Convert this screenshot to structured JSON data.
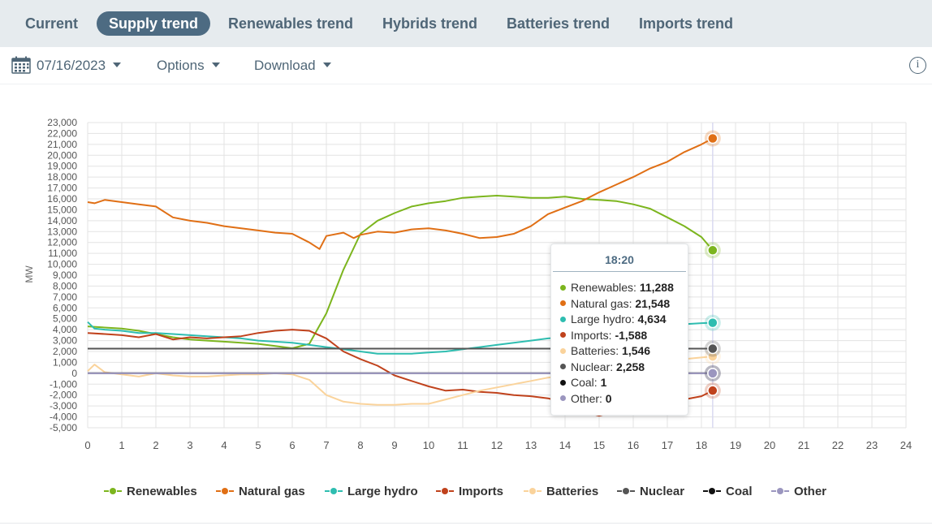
{
  "tabs": [
    {
      "label": "Current",
      "active": false
    },
    {
      "label": "Supply trend",
      "active": true
    },
    {
      "label": "Renewables trend",
      "active": false
    },
    {
      "label": "Hybrids trend",
      "active": false
    },
    {
      "label": "Batteries trend",
      "active": false
    },
    {
      "label": "Imports trend",
      "active": false
    }
  ],
  "toolbar": {
    "date": "07/16/2023",
    "options_label": "Options",
    "download_label": "Download",
    "info_label": "i"
  },
  "tooltip": {
    "time": "18:20",
    "rows": [
      {
        "label": "Renewables:",
        "value": "11,288",
        "color": "#7cb51e"
      },
      {
        "label": "Natural gas:",
        "value": "21,548",
        "color": "#e06f15"
      },
      {
        "label": "Large hydro:",
        "value": "4,634",
        "color": "#2ebdb0"
      },
      {
        "label": "Imports:",
        "value": "-1,588",
        "color": "#c0421c"
      },
      {
        "label": "Batteries:",
        "value": "1,546",
        "color": "#fad39b"
      },
      {
        "label": "Nuclear:",
        "value": "2,258",
        "color": "#555555"
      },
      {
        "label": "Coal:",
        "value": "1",
        "color": "#111111"
      },
      {
        "label": "Other:",
        "value": "0",
        "color": "#9b96bf"
      }
    ]
  },
  "chart_data": {
    "type": "line",
    "title": "",
    "xlabel": "",
    "ylabel": "MW",
    "xlim": [
      0,
      24
    ],
    "ylim": [
      -5000,
      23000
    ],
    "x_ticks": [
      "0",
      "1",
      "2",
      "3",
      "4",
      "5",
      "6",
      "7",
      "8",
      "9",
      "10",
      "11",
      "12",
      "13",
      "14",
      "15",
      "16",
      "17",
      "18",
      "19",
      "20",
      "21",
      "22",
      "23",
      "24"
    ],
    "y_ticks": [
      "23,000",
      "22,000",
      "21,000",
      "20,000",
      "19,000",
      "18,000",
      "17,000",
      "16,000",
      "15,000",
      "14,000",
      "13,000",
      "12,000",
      "11,000",
      "10,000",
      "9,000",
      "8,000",
      "7,000",
      "6,000",
      "5,000",
      "4,000",
      "3,000",
      "2,000",
      "1,000",
      "0",
      "-1,000",
      "-2,000",
      "-3,000",
      "-4,000",
      "-5,000"
    ],
    "grid": true,
    "legend_position": "bottom",
    "crosshair_x": 18.33,
    "series": [
      {
        "name": "Renewables",
        "color": "#7cb51e",
        "x": [
          0,
          0.5,
          1,
          1.5,
          2,
          2.5,
          3,
          3.5,
          4,
          4.5,
          5,
          5.5,
          6,
          6.5,
          7,
          7.5,
          8,
          8.5,
          9,
          9.5,
          10,
          10.5,
          11,
          11.5,
          12,
          12.5,
          13,
          13.5,
          14,
          14.5,
          15,
          15.5,
          16,
          16.5,
          17,
          17.5,
          18,
          18.33
        ],
        "y": [
          4300,
          4200,
          4100,
          3900,
          3600,
          3300,
          3100,
          3000,
          2900,
          2800,
          2700,
          2500,
          2300,
          2700,
          5500,
          9500,
          12800,
          14000,
          14700,
          15300,
          15600,
          15800,
          16100,
          16200,
          16300,
          16200,
          16100,
          16100,
          16200,
          16000,
          15900,
          15800,
          15500,
          15100,
          14300,
          13500,
          12500,
          11288
        ]
      },
      {
        "name": "Natural gas",
        "color": "#e06f15",
        "x": [
          0,
          0.2,
          0.5,
          1,
          1.5,
          2,
          2.5,
          3,
          3.5,
          4,
          4.5,
          5,
          5.5,
          6,
          6.5,
          6.8,
          7,
          7.5,
          7.8,
          8,
          8.5,
          9,
          9.5,
          10,
          10.5,
          11,
          11.5,
          12,
          12.5,
          13,
          13.5,
          14,
          14.5,
          15,
          15.5,
          16,
          16.5,
          17,
          17.5,
          18,
          18.33
        ],
        "y": [
          15700,
          15600,
          15900,
          15700,
          15500,
          15300,
          14300,
          14000,
          13800,
          13500,
          13300,
          13100,
          12900,
          12800,
          12000,
          11400,
          12600,
          12900,
          12400,
          12700,
          13000,
          12900,
          13200,
          13300,
          13100,
          12800,
          12400,
          12500,
          12800,
          13500,
          14600,
          15200,
          15800,
          16600,
          17300,
          18000,
          18800,
          19400,
          20300,
          21000,
          21548
        ]
      },
      {
        "name": "Large hydro",
        "color": "#2ebdb0",
        "x": [
          0,
          0.2,
          0.5,
          1,
          1.5,
          2,
          2.5,
          3,
          3.5,
          4,
          4.5,
          5,
          5.5,
          6,
          6.5,
          7,
          7.5,
          8,
          8.5,
          9,
          9.5,
          10,
          10.5,
          11,
          11.5,
          12,
          12.5,
          13,
          13.5,
          14,
          14.5,
          15,
          15.5,
          16,
          16.5,
          17,
          17.5,
          18,
          18.33
        ],
        "y": [
          4700,
          4100,
          4000,
          3900,
          3700,
          3700,
          3600,
          3500,
          3400,
          3300,
          3200,
          3000,
          2900,
          2800,
          2600,
          2400,
          2200,
          2000,
          1800,
          1800,
          1800,
          1900,
          2000,
          2200,
          2400,
          2600,
          2800,
          3000,
          3200,
          3300,
          3500,
          3700,
          3900,
          4100,
          4300,
          4400,
          4500,
          4600,
          4634
        ]
      },
      {
        "name": "Imports",
        "color": "#c0421c",
        "x": [
          0,
          0.5,
          1,
          1.5,
          2,
          2.5,
          3,
          3.5,
          4,
          4.5,
          5,
          5.5,
          6,
          6.5,
          7,
          7.5,
          8,
          8.5,
          9,
          9.5,
          10,
          10.5,
          11,
          11.5,
          12,
          12.5,
          13,
          13.5,
          14,
          14.5,
          15,
          15.5,
          16,
          16.5,
          17,
          17.5,
          18,
          18.33
        ],
        "y": [
          3700,
          3600,
          3500,
          3300,
          3600,
          3100,
          3300,
          3200,
          3300,
          3400,
          3700,
          3900,
          4000,
          3900,
          3200,
          2000,
          1300,
          700,
          -200,
          -700,
          -1200,
          -1600,
          -1500,
          -1700,
          -1800,
          -2000,
          -2100,
          -2300,
          -2700,
          -3500,
          -3900,
          -3500,
          -3100,
          -2800,
          -2600,
          -2400,
          -2100,
          -1588
        ]
      },
      {
        "name": "Batteries",
        "color": "#fad39b",
        "x": [
          0,
          0.2,
          0.5,
          1,
          1.5,
          2,
          2.5,
          3,
          3.5,
          4,
          4.5,
          5,
          5.5,
          6,
          6.5,
          7,
          7.5,
          8,
          8.5,
          9,
          9.5,
          10,
          10.5,
          11,
          11.5,
          12,
          12.5,
          13,
          13.5,
          14,
          14.5,
          15,
          15.5,
          16,
          16.5,
          17,
          17.5,
          18,
          18.33
        ],
        "y": [
          200,
          800,
          100,
          -100,
          -300,
          0,
          -200,
          -300,
          -300,
          -200,
          -100,
          -100,
          0,
          -100,
          -600,
          -2000,
          -2600,
          -2800,
          -2900,
          -2900,
          -2800,
          -2800,
          -2400,
          -2000,
          -1600,
          -1300,
          -1000,
          -700,
          -400,
          -200,
          100,
          300,
          500,
          700,
          900,
          1100,
          1300,
          1450,
          1546
        ]
      },
      {
        "name": "Nuclear",
        "color": "#555555",
        "x": [
          0,
          18.33
        ],
        "y": [
          2258,
          2258
        ]
      },
      {
        "name": "Coal",
        "color": "#111111",
        "x": [
          0,
          18.33
        ],
        "y": [
          1,
          1
        ]
      },
      {
        "name": "Other",
        "color": "#9b96bf",
        "x": [
          0,
          18.33
        ],
        "y": [
          0,
          0
        ]
      }
    ]
  }
}
